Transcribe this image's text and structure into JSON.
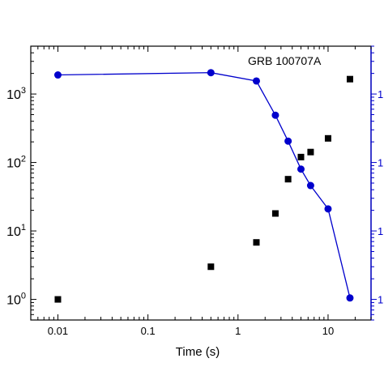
{
  "chart_data": {
    "type": "scatter",
    "title": "",
    "annotation": "GRB 100707A",
    "xlabel": "Time (s)",
    "ylabel": "",
    "x_scale": "log",
    "y_scale": "log",
    "xlim": [
      0.005,
      30
    ],
    "ylim": [
      0.5,
      5000
    ],
    "right_ylim": [
      0.5,
      5000
    ],
    "grid": false,
    "x_ticks": [
      {
        "value": 0.01,
        "label": "0.01"
      },
      {
        "value": 0.1,
        "label": "0.1"
      },
      {
        "value": 1,
        "label": "1"
      },
      {
        "value": 10,
        "label": "10"
      }
    ],
    "y_ticks": [
      {
        "value": 1,
        "base": "10",
        "exp": "0"
      },
      {
        "value": 10,
        "base": "10",
        "exp": "1"
      },
      {
        "value": 100,
        "base": "10",
        "exp": "2"
      },
      {
        "value": 1000,
        "base": "10",
        "exp": "3"
      }
    ],
    "right_y_ticks": [
      {
        "value": 1,
        "label": "1"
      },
      {
        "value": 10,
        "label": "1"
      },
      {
        "value": 100,
        "label": "1"
      },
      {
        "value": 1000,
        "label": "1"
      }
    ],
    "series": [
      {
        "marker": "square",
        "color": "#000000",
        "line": false,
        "axis": "left",
        "x": [
          0.01,
          0.5,
          1.6,
          2.6,
          3.6,
          5.0,
          6.4,
          10.0,
          17.5
        ],
        "y": [
          1.0,
          3.0,
          6.8,
          18,
          57,
          120,
          142,
          225,
          1650
        ]
      },
      {
        "marker": "circle",
        "color": "#0000cc",
        "line": true,
        "axis": "right",
        "x": [
          0.01,
          0.5,
          1.6,
          2.6,
          3.6,
          5.0,
          6.4,
          10.0,
          17.5
        ],
        "y": [
          1900,
          2050,
          1550,
          490,
          205,
          80,
          46,
          21,
          1.05
        ]
      }
    ]
  }
}
